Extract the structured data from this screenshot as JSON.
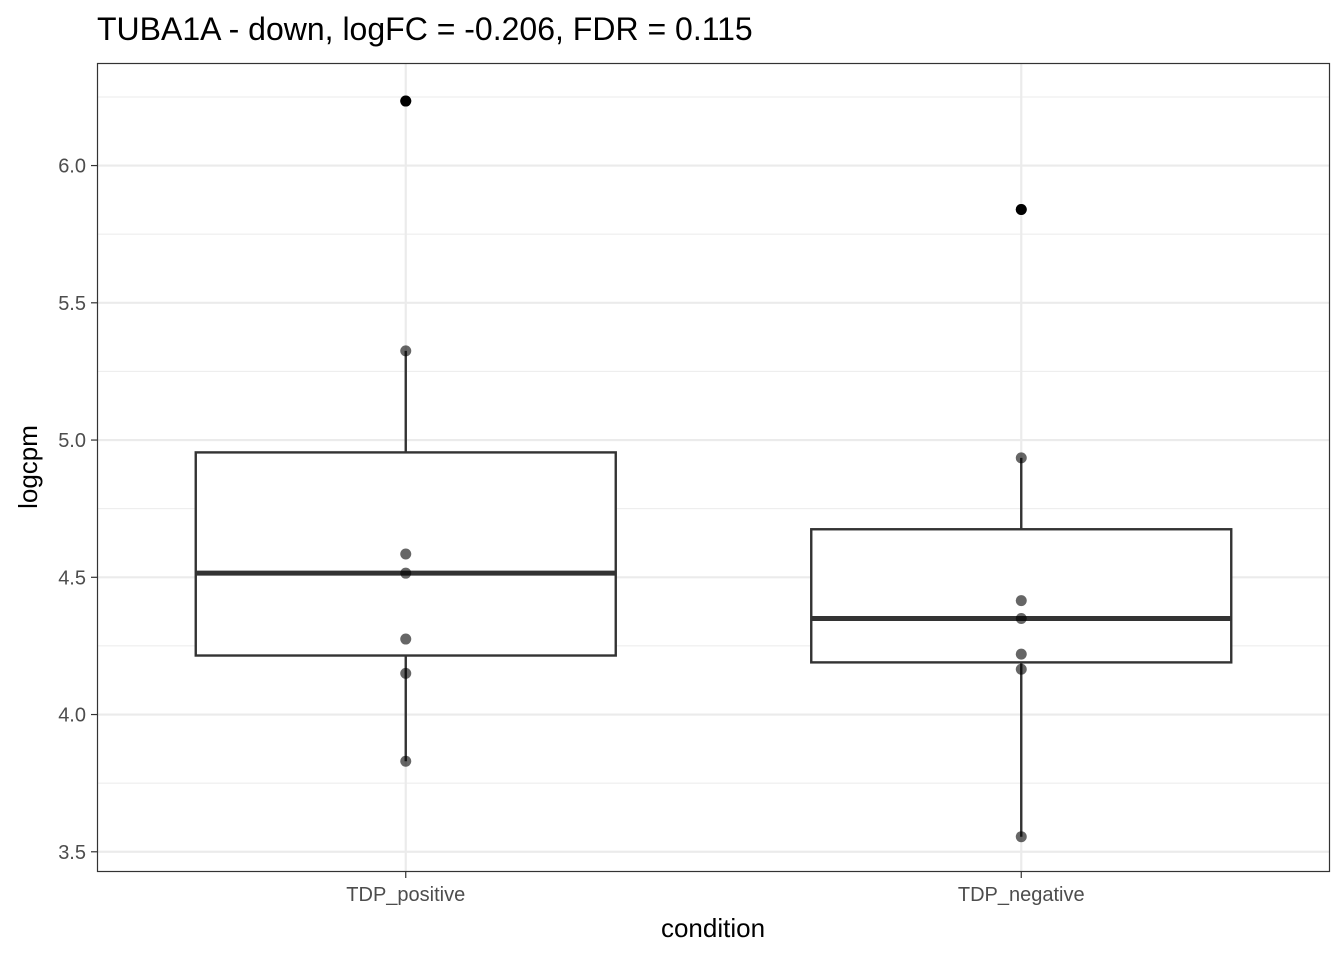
{
  "chart_data": {
    "type": "box",
    "title": "TUBA1A - down, logFC = -0.206, FDR = 0.115",
    "xlabel": "condition",
    "ylabel": "logcpm",
    "categories": [
      "TDP_positive",
      "TDP_negative"
    ],
    "ylim": [
      3.43,
      6.37
    ],
    "yticks": [
      3.5,
      4.0,
      4.5,
      5.0,
      5.5,
      6.0
    ],
    "ytick_labels": [
      "3.5",
      "4.0",
      "4.5",
      "5.0",
      "5.5",
      "6.0"
    ],
    "grid": true,
    "boxes": [
      {
        "category": "TDP_positive",
        "whisker_low": 3.83,
        "q1": 4.215,
        "median": 4.515,
        "q3": 4.955,
        "whisker_high": 5.325,
        "outliers": [
          6.235
        ],
        "points": [
          6.235,
          5.325,
          4.585,
          4.515,
          4.275,
          4.15,
          3.83
        ]
      },
      {
        "category": "TDP_negative",
        "whisker_low": 3.555,
        "q1": 4.19,
        "median": 4.35,
        "q3": 4.675,
        "whisker_high": 4.935,
        "outliers": [
          5.84
        ],
        "points": [
          5.84,
          4.935,
          4.415,
          4.35,
          4.22,
          4.165,
          3.555
        ]
      }
    ],
    "colors": {
      "box_line": "#333333",
      "point": "#000000",
      "grid": "#ebebeb",
      "panel_border": "#333333"
    }
  }
}
